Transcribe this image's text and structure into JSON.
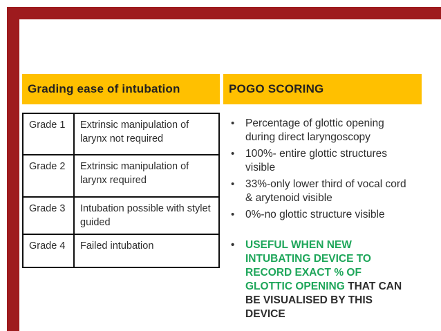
{
  "colors": {
    "gold_header": "#FFC000",
    "accent_red_bar": "#9E1B1E",
    "body_text": "#2d2d2d",
    "highlight_green": "#1EA65A",
    "table_border": "#0f0f0f"
  },
  "glyphs": {
    "bullet": "•"
  },
  "left_panel": {
    "title": "Grading ease of intubation",
    "table": {
      "rows": [
        {
          "grade": "Grade 1",
          "description": "Extrinsic manipulation of larynx not required"
        },
        {
          "grade": "Grade 2",
          "description": "Extrinsic manipulation of larynx  required"
        },
        {
          "grade": "Grade 3",
          "description": "Intubation possible with stylet guided"
        },
        {
          "grade": "Grade 4",
          "description": "Failed intubation"
        }
      ]
    }
  },
  "right_panel": {
    "title": "POGO SCORING",
    "bullets": [
      "Percentage of glottic opening during direct laryngoscopy",
      "100%- entire glottic structures visible",
      "33%-only lower third of vocal cord & arytenoid visible",
      "0%-no glottic structure visible"
    ],
    "highlight_bullet": {
      "green_text": "USEFUL WHEN NEW INTUBATING DEVICE TO RECORD EXACT % OF GLOTTIC OPENING",
      "dark_text": " THAT CAN BE VISUALISED BY THIS DEVICE"
    }
  }
}
